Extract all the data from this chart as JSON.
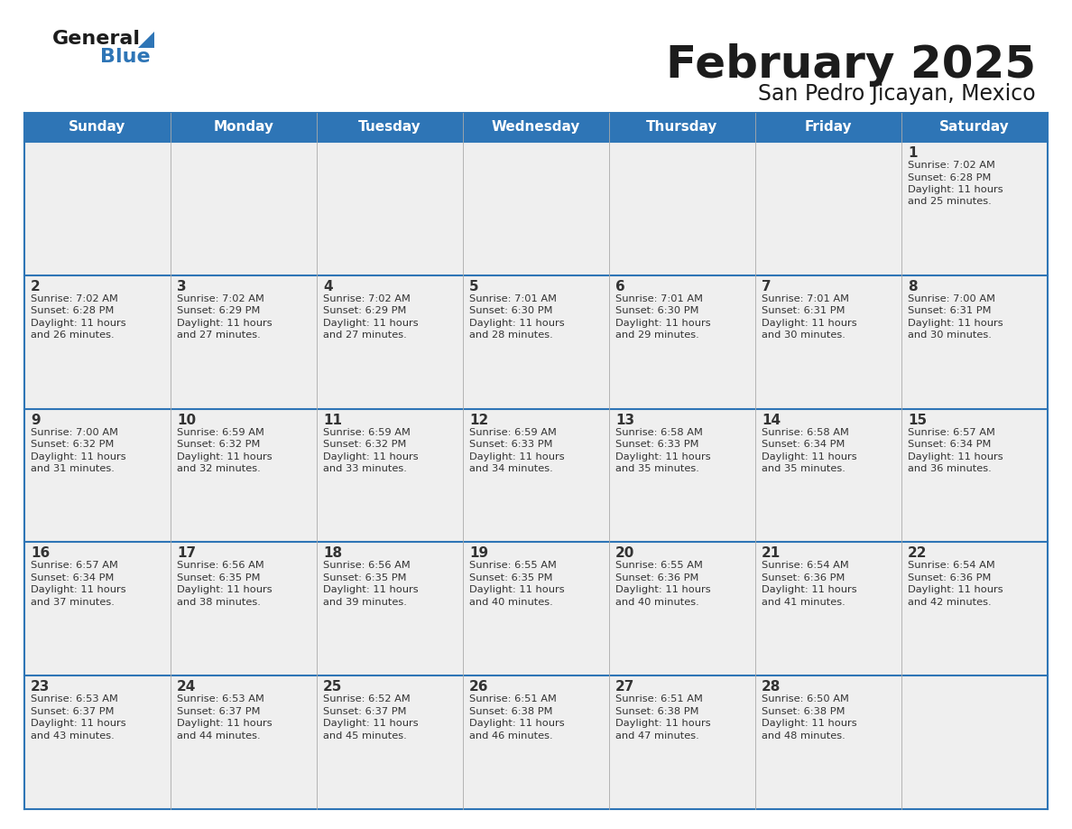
{
  "title": "February 2025",
  "subtitle": "San Pedro Jicayan, Mexico",
  "header_bg": "#2E75B6",
  "header_text_color": "#FFFFFF",
  "cell_bg": "#EFEFEF",
  "day_number_color": "#333333",
  "text_color": "#333333",
  "border_color": "#2E75B6",
  "days_of_week": [
    "Sunday",
    "Monday",
    "Tuesday",
    "Wednesday",
    "Thursday",
    "Friday",
    "Saturday"
  ],
  "calendar_data": [
    [
      null,
      null,
      null,
      null,
      null,
      null,
      {
        "day": 1,
        "sunrise": "7:02 AM",
        "sunset": "6:28 PM",
        "daylight": "11 hours and 25 minutes."
      }
    ],
    [
      {
        "day": 2,
        "sunrise": "7:02 AM",
        "sunset": "6:28 PM",
        "daylight": "11 hours and 26 minutes."
      },
      {
        "day": 3,
        "sunrise": "7:02 AM",
        "sunset": "6:29 PM",
        "daylight": "11 hours and 27 minutes."
      },
      {
        "day": 4,
        "sunrise": "7:02 AM",
        "sunset": "6:29 PM",
        "daylight": "11 hours and 27 minutes."
      },
      {
        "day": 5,
        "sunrise": "7:01 AM",
        "sunset": "6:30 PM",
        "daylight": "11 hours and 28 minutes."
      },
      {
        "day": 6,
        "sunrise": "7:01 AM",
        "sunset": "6:30 PM",
        "daylight": "11 hours and 29 minutes."
      },
      {
        "day": 7,
        "sunrise": "7:01 AM",
        "sunset": "6:31 PM",
        "daylight": "11 hours and 30 minutes."
      },
      {
        "day": 8,
        "sunrise": "7:00 AM",
        "sunset": "6:31 PM",
        "daylight": "11 hours and 30 minutes."
      }
    ],
    [
      {
        "day": 9,
        "sunrise": "7:00 AM",
        "sunset": "6:32 PM",
        "daylight": "11 hours and 31 minutes."
      },
      {
        "day": 10,
        "sunrise": "6:59 AM",
        "sunset": "6:32 PM",
        "daylight": "11 hours and 32 minutes."
      },
      {
        "day": 11,
        "sunrise": "6:59 AM",
        "sunset": "6:32 PM",
        "daylight": "11 hours and 33 minutes."
      },
      {
        "day": 12,
        "sunrise": "6:59 AM",
        "sunset": "6:33 PM",
        "daylight": "11 hours and 34 minutes."
      },
      {
        "day": 13,
        "sunrise": "6:58 AM",
        "sunset": "6:33 PM",
        "daylight": "11 hours and 35 minutes."
      },
      {
        "day": 14,
        "sunrise": "6:58 AM",
        "sunset": "6:34 PM",
        "daylight": "11 hours and 35 minutes."
      },
      {
        "day": 15,
        "sunrise": "6:57 AM",
        "sunset": "6:34 PM",
        "daylight": "11 hours and 36 minutes."
      }
    ],
    [
      {
        "day": 16,
        "sunrise": "6:57 AM",
        "sunset": "6:34 PM",
        "daylight": "11 hours and 37 minutes."
      },
      {
        "day": 17,
        "sunrise": "6:56 AM",
        "sunset": "6:35 PM",
        "daylight": "11 hours and 38 minutes."
      },
      {
        "day": 18,
        "sunrise": "6:56 AM",
        "sunset": "6:35 PM",
        "daylight": "11 hours and 39 minutes."
      },
      {
        "day": 19,
        "sunrise": "6:55 AM",
        "sunset": "6:35 PM",
        "daylight": "11 hours and 40 minutes."
      },
      {
        "day": 20,
        "sunrise": "6:55 AM",
        "sunset": "6:36 PM",
        "daylight": "11 hours and 40 minutes."
      },
      {
        "day": 21,
        "sunrise": "6:54 AM",
        "sunset": "6:36 PM",
        "daylight": "11 hours and 41 minutes."
      },
      {
        "day": 22,
        "sunrise": "6:54 AM",
        "sunset": "6:36 PM",
        "daylight": "11 hours and 42 minutes."
      }
    ],
    [
      {
        "day": 23,
        "sunrise": "6:53 AM",
        "sunset": "6:37 PM",
        "daylight": "11 hours and 43 minutes."
      },
      {
        "day": 24,
        "sunrise": "6:53 AM",
        "sunset": "6:37 PM",
        "daylight": "11 hours and 44 minutes."
      },
      {
        "day": 25,
        "sunrise": "6:52 AM",
        "sunset": "6:37 PM",
        "daylight": "11 hours and 45 minutes."
      },
      {
        "day": 26,
        "sunrise": "6:51 AM",
        "sunset": "6:38 PM",
        "daylight": "11 hours and 46 minutes."
      },
      {
        "day": 27,
        "sunrise": "6:51 AM",
        "sunset": "6:38 PM",
        "daylight": "11 hours and 47 minutes."
      },
      {
        "day": 28,
        "sunrise": "6:50 AM",
        "sunset": "6:38 PM",
        "daylight": "11 hours and 48 minutes."
      },
      null
    ]
  ]
}
